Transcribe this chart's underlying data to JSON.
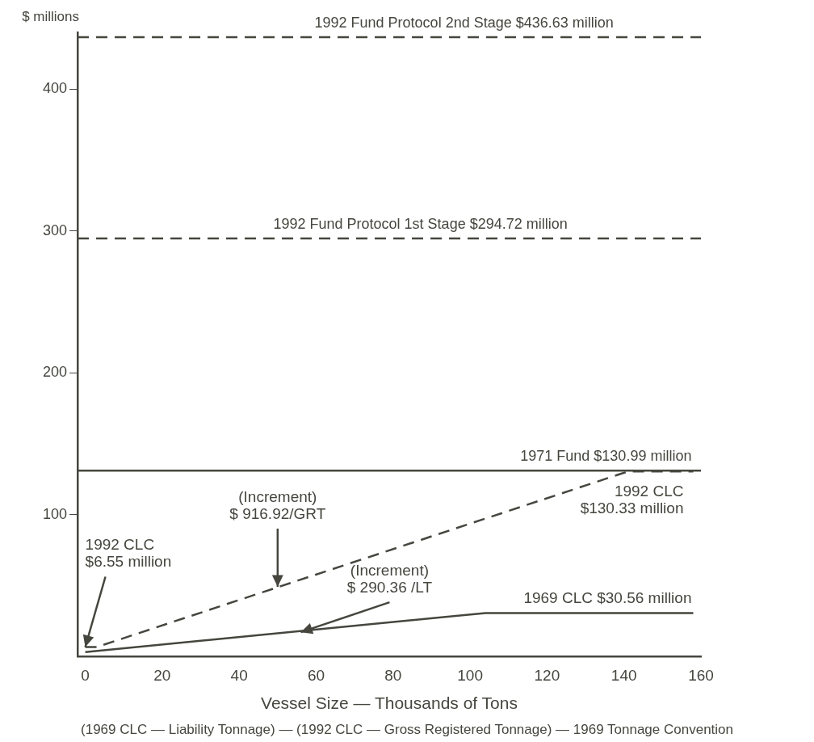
{
  "chart_data": {
    "type": "line",
    "ylabel": "$ millions",
    "xlabel": "Vessel Size — Thousands of Tons",
    "xlim": [
      -2,
      160
    ],
    "xticks": [
      0,
      20,
      40,
      60,
      80,
      100,
      120,
      140,
      160
    ],
    "ylim": [
      0,
      440
    ],
    "yticks": [
      100,
      200,
      300,
      400
    ],
    "grid": false,
    "legend": false,
    "marker": "none",
    "series": [
      {
        "color": "#46463f",
        "line_style": "solid",
        "x": [
          0,
          104,
          158
        ],
        "values": [
          3,
          30.56,
          30.56
        ]
      },
      {
        "color": "#46463f",
        "line_style": "dashed",
        "x": [
          0,
          3,
          141,
          158
        ],
        "values": [
          6.55,
          6.55,
          130.33,
          130.33
        ]
      }
    ],
    "ref_lines": [
      {
        "axis": "y",
        "value": 436.63,
        "label": "1992 Fund Protocol 2nd Stage $436.63 million",
        "line_style": "dashed",
        "color": "#46463f"
      },
      {
        "axis": "y",
        "value": 294.72,
        "label": "1992 Fund Protocol 1st Stage $294.72 million",
        "line_style": "dashed",
        "color": "#46463f"
      },
      {
        "axis": "y",
        "value": 130.99,
        "label": "1971 Fund $130.99 million",
        "line_style": "solid",
        "color": "#46463f"
      }
    ],
    "annotations": [
      {
        "text": "1992 CLC\n$6.55 million",
        "x": 0,
        "y": 6.55
      },
      {
        "text": "(Increment)\n$ 916.92/GRT",
        "x": 50,
        "y": 49
      },
      {
        "text": "(Increment)\n$ 290.36 /LT",
        "x": 56,
        "y": 17
      },
      {
        "text": "1969 CLC $30.56 million",
        "x": 158,
        "y": 30.56
      },
      {
        "text": "1992 CLC\n$130.33 million",
        "x": 158,
        "y": 130.33
      },
      "(1969 CLC — Liability Tonnage) — (1992 CLC — Gross Registered Tonnage) — 1969 Tonnage Convention"
    ]
  }
}
